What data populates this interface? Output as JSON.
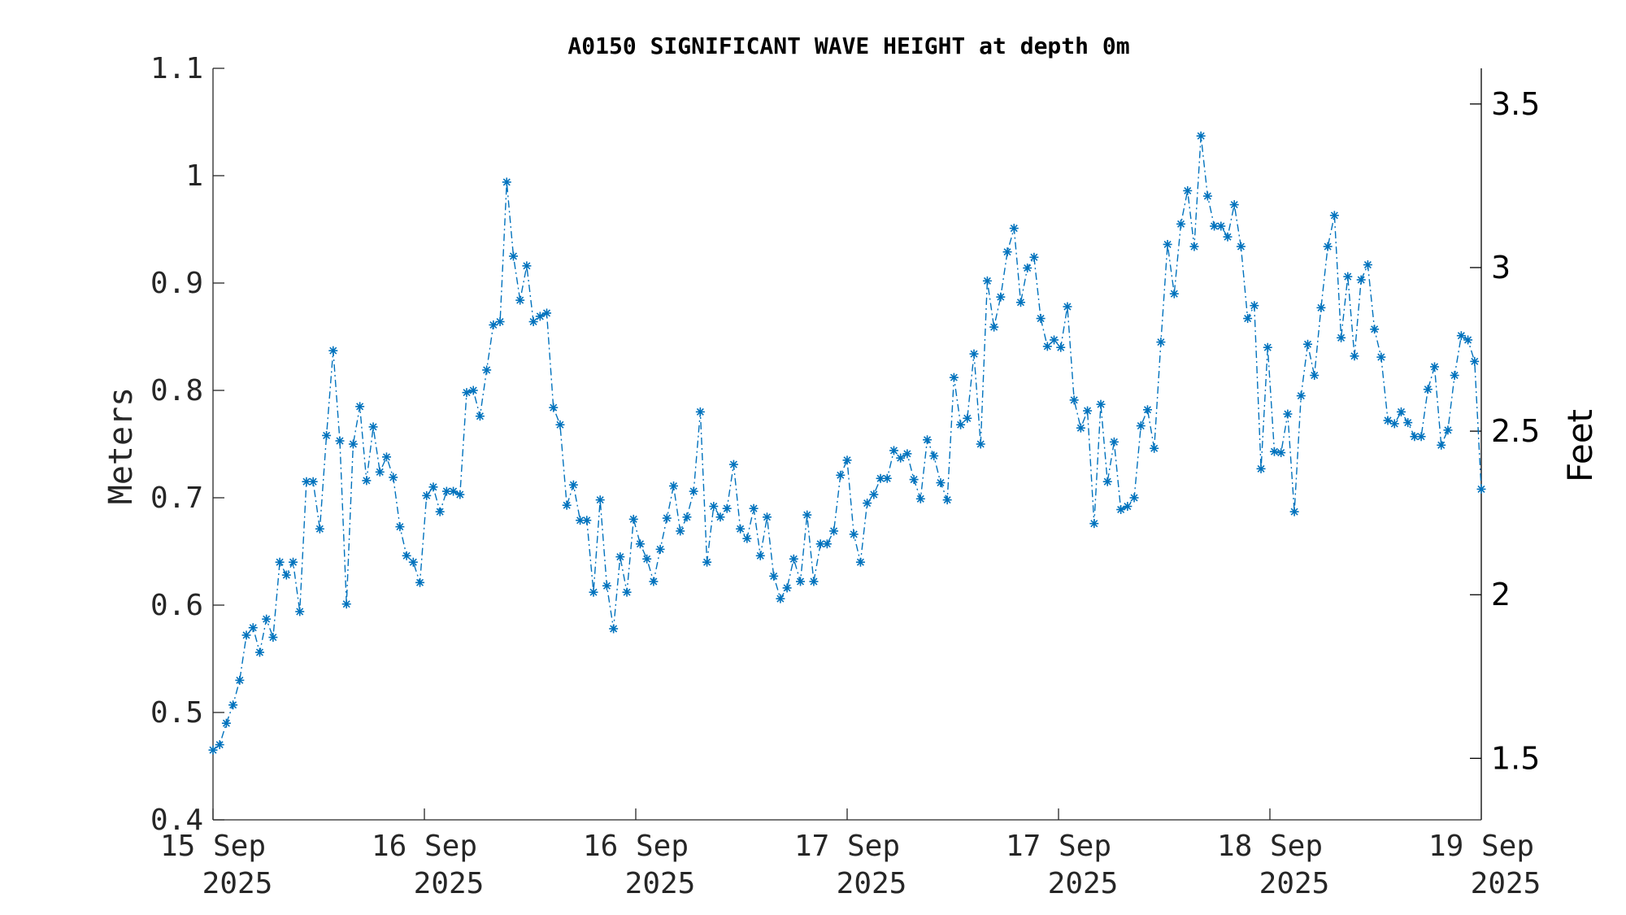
{
  "chart_data": {
    "type": "line",
    "title": "A0150 SIGNIFICANT WAVE HEIGHT at depth 0m",
    "ylabel": "Meters",
    "y2label": "Feet",
    "ylim": [
      0.4,
      1.1
    ],
    "y2lim": [
      1.312,
      3.609
    ],
    "xlim_hours": [
      0,
      96
    ],
    "yticks": [
      "0.4",
      "0.5",
      "0.6",
      "0.7",
      "0.8",
      "0.9",
      "1",
      "1.1"
    ],
    "y2ticks": [
      "1.5",
      "2",
      "2.5",
      "3",
      "3.5"
    ],
    "xticks": [
      {
        "line1": "15 Sep",
        "line2": "2025"
      },
      {
        "line1": "16 Sep",
        "line2": "2025"
      },
      {
        "line1": "16 Sep",
        "line2": "2025"
      },
      {
        "line1": "17 Sep",
        "line2": "2025"
      },
      {
        "line1": "17 Sep",
        "line2": "2025"
      },
      {
        "line1": "18 Sep",
        "line2": "2025"
      },
      {
        "line1": "19 Sep",
        "line2": "2025"
      }
    ],
    "grid": false,
    "series": [
      {
        "color": "#0072BD",
        "line_style": "dash-dot",
        "marker": "asterisk",
        "values": [
          0.465,
          0.47,
          0.49,
          0.507,
          0.53,
          0.572,
          0.579,
          0.556,
          0.587,
          0.57,
          0.64,
          0.628,
          0.64,
          0.594,
          0.715,
          0.715,
          0.671,
          0.758,
          0.837,
          0.753,
          0.601,
          0.75,
          0.785,
          0.716,
          0.766,
          0.724,
          0.738,
          0.719,
          0.673,
          0.646,
          0.64,
          0.621,
          0.702,
          0.71,
          0.687,
          0.706,
          0.706,
          0.703,
          0.798,
          0.8,
          0.776,
          0.819,
          0.861,
          0.864,
          0.994,
          0.925,
          0.884,
          0.916,
          0.864,
          0.869,
          0.872,
          0.784,
          0.768,
          0.693,
          0.712,
          0.679,
          0.679,
          0.612,
          0.698,
          0.618,
          0.578,
          0.645,
          0.612,
          0.68,
          0.657,
          0.643,
          0.622,
          0.652,
          0.681,
          0.711,
          0.669,
          0.682,
          0.706,
          0.78,
          0.64,
          0.692,
          0.682,
          0.69,
          0.731,
          0.671,
          0.662,
          0.69,
          0.646,
          0.682,
          0.627,
          0.606,
          0.616,
          0.643,
          0.622,
          0.684,
          0.622,
          0.657,
          0.657,
          0.669,
          0.721,
          0.735,
          0.666,
          0.64,
          0.695,
          0.703,
          0.718,
          0.718,
          0.744,
          0.737,
          0.741,
          0.717,
          0.699,
          0.754,
          0.739,
          0.714,
          0.698,
          0.812,
          0.768,
          0.774,
          0.834,
          0.75,
          0.902,
          0.859,
          0.887,
          0.929,
          0.951,
          0.882,
          0.914,
          0.924,
          0.867,
          0.841,
          0.847,
          0.84,
          0.878,
          0.791,
          0.765,
          0.781,
          0.676,
          0.787,
          0.715,
          0.752,
          0.689,
          0.692,
          0.7,
          0.767,
          0.782,
          0.746,
          0.845,
          0.936,
          0.89,
          0.955,
          0.986,
          0.934,
          1.037,
          0.981,
          0.953,
          0.953,
          0.943,
          0.973,
          0.934,
          0.867,
          0.879,
          0.727,
          0.84,
          0.743,
          0.742,
          0.778,
          0.687,
          0.795,
          0.843,
          0.814,
          0.877,
          0.934,
          0.963,
          0.849,
          0.906,
          0.832,
          0.903,
          0.917,
          0.857,
          0.831,
          0.772,
          0.769,
          0.78,
          0.77,
          0.757,
          0.757,
          0.801,
          0.822,
          0.749,
          0.763,
          0.814,
          0.851,
          0.847,
          0.827,
          0.708
        ]
      }
    ]
  }
}
